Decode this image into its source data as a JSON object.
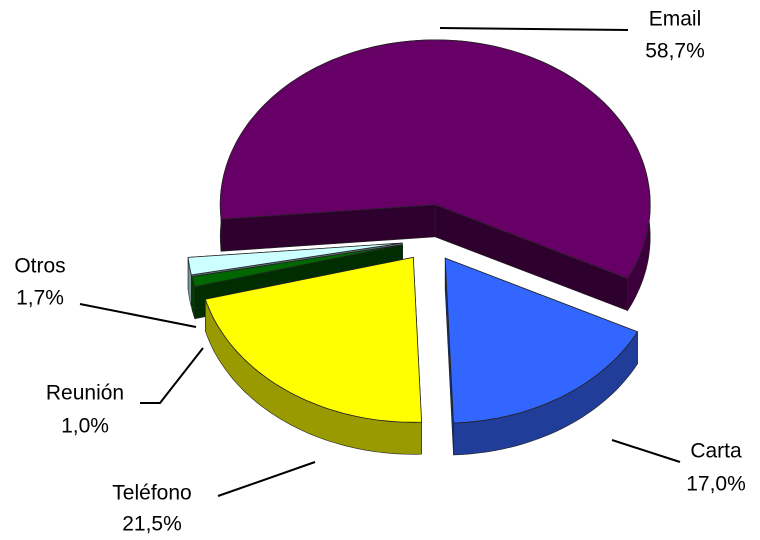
{
  "chart_data": {
    "type": "pie",
    "categories": [
      "Email",
      "Carta",
      "Teléfono",
      "Reunión",
      "Otros"
    ],
    "values": [
      58.7,
      17.0,
      21.5,
      1.0,
      1.7
    ],
    "value_labels": [
      "58,7%",
      "17,0%",
      "21,5%",
      "1,0%",
      "1,7%"
    ],
    "colors": [
      "#660066",
      "#3366ff",
      "#ffff00",
      "#006600",
      "#ccffff"
    ]
  }
}
